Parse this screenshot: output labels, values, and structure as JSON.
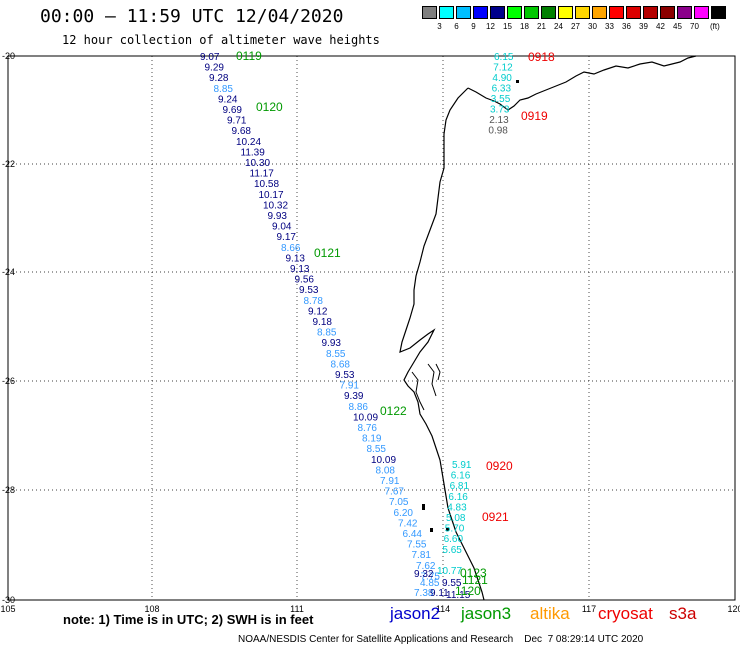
{
  "header": {
    "title": "00:00 – 11:59 UTC 12/04/2020",
    "subtitle": "12 hour collection of altimeter wave heights"
  },
  "colorbar": {
    "colors": [
      "#7f7f7f",
      "#00ffff",
      "#00bfff",
      "#0000ff",
      "#00008b",
      "#00ff00",
      "#00c800",
      "#008000",
      "#ffff00",
      "#ffd700",
      "#ffa500",
      "#ff0000",
      "#dc0000",
      "#b40000",
      "#8b0000",
      "#8b008b",
      "#ff00ff",
      "#000000"
    ],
    "labels": [
      "3",
      "6",
      "9",
      "12",
      "15",
      "18",
      "21",
      "24",
      "27",
      "30",
      "33",
      "36",
      "39",
      "42",
      "45",
      "70"
    ],
    "unit": "(ft)"
  },
  "axes": {
    "lon_ticks": [
      "105",
      "108",
      "111",
      "114",
      "117",
      "120"
    ],
    "lat_ticks": [
      "-20",
      "-22",
      "-24",
      "-26",
      "-28",
      "-30"
    ]
  },
  "colors": {
    "jason2": "#0000cc",
    "jason3": "#009900",
    "altika": "#ff9900",
    "cryosat": "#ee0000",
    "s3a": "#cc0000",
    "light": "#00cccc",
    "mid": "#3399ff",
    "dark": "#000080",
    "gray": "#555555"
  },
  "main_track": {
    "values": [
      {
        "v": "9.07",
        "c": "dark"
      },
      {
        "v": "9.29",
        "c": "dark"
      },
      {
        "v": "9.28",
        "c": "dark"
      },
      {
        "v": "8.85",
        "c": "mid"
      },
      {
        "v": "9.24",
        "c": "dark"
      },
      {
        "v": "9.69",
        "c": "dark"
      },
      {
        "v": "9.71",
        "c": "dark"
      },
      {
        "v": "9.68",
        "c": "dark"
      },
      {
        "v": "10.24",
        "c": "dark"
      },
      {
        "v": "11.39",
        "c": "dark"
      },
      {
        "v": "10.30",
        "c": "dark"
      },
      {
        "v": "11.17",
        "c": "dark"
      },
      {
        "v": "10.58",
        "c": "dark"
      },
      {
        "v": "10.17",
        "c": "dark"
      },
      {
        "v": "10.32",
        "c": "dark"
      },
      {
        "v": "9.93",
        "c": "dark"
      },
      {
        "v": "9.04",
        "c": "dark"
      },
      {
        "v": "9.17",
        "c": "dark"
      },
      {
        "v": "8.66",
        "c": "mid"
      },
      {
        "v": "9.13",
        "c": "dark"
      },
      {
        "v": "9.13",
        "c": "dark"
      },
      {
        "v": "9.56",
        "c": "dark"
      },
      {
        "v": "9.53",
        "c": "dark"
      },
      {
        "v": "8.78",
        "c": "mid"
      },
      {
        "v": "9.12",
        "c": "dark"
      },
      {
        "v": "9.18",
        "c": "dark"
      },
      {
        "v": "8.85",
        "c": "mid"
      },
      {
        "v": "9.93",
        "c": "dark"
      },
      {
        "v": "8.55",
        "c": "mid"
      },
      {
        "v": "8.68",
        "c": "mid"
      },
      {
        "v": "9.53",
        "c": "dark"
      },
      {
        "v": "7.91",
        "c": "mid"
      },
      {
        "v": "9.39",
        "c": "dark"
      },
      {
        "v": "8.86",
        "c": "mid"
      },
      {
        "v": "10.09",
        "c": "dark"
      },
      {
        "v": "8.76",
        "c": "mid"
      },
      {
        "v": "8.19",
        "c": "mid"
      },
      {
        "v": "8.55",
        "c": "mid"
      },
      {
        "v": "10.09",
        "c": "dark"
      },
      {
        "v": "8.08",
        "c": "mid"
      },
      {
        "v": "7.91",
        "c": "mid"
      },
      {
        "v": "7.67",
        "c": "mid"
      },
      {
        "v": "7.05",
        "c": "mid"
      },
      {
        "v": "6.20",
        "c": "mid"
      },
      {
        "v": "7.42",
        "c": "mid"
      },
      {
        "v": "6.44",
        "c": "mid"
      },
      {
        "v": "7.55",
        "c": "mid"
      },
      {
        "v": "7.81",
        "c": "mid"
      },
      {
        "v": "7.62",
        "c": "mid"
      },
      {
        "v": "7.75",
        "c": "mid"
      }
    ],
    "time_labels": [
      "0119",
      "0120",
      "0121",
      "0122"
    ]
  },
  "right_track_top": {
    "values": [
      {
        "v": "6.15",
        "c": "light"
      },
      {
        "v": "7.12",
        "c": "light"
      },
      {
        "v": "4.90",
        "c": "light"
      },
      {
        "v": "6.33",
        "c": "light"
      },
      {
        "v": "3.55",
        "c": "light"
      },
      {
        "v": "3.73",
        "c": "light"
      },
      {
        "v": "2.13",
        "c": "gray"
      },
      {
        "v": "0.98",
        "c": "gray"
      }
    ],
    "time_labels": [
      "0918",
      "0919"
    ]
  },
  "right_track_bottom": {
    "values": [
      {
        "v": "5.91",
        "c": "light"
      },
      {
        "v": "6.16",
        "c": "light"
      },
      {
        "v": "6.81",
        "c": "light"
      },
      {
        "v": "6.16",
        "c": "light"
      },
      {
        "v": "4.83",
        "c": "light"
      },
      {
        "v": "5.08",
        "c": "light"
      },
      {
        "v": "5.70",
        "c": "light"
      },
      {
        "v": "6.60",
        "c": "light"
      },
      {
        "v": "5.65",
        "c": "light"
      }
    ],
    "time_labels": [
      "0920",
      "0921"
    ]
  },
  "bottom_cluster": {
    "values": [
      "9.32",
      "10.77",
      "4.85",
      "9.55",
      "7.38",
      "9.11",
      "11.15"
    ],
    "time_labels": [
      "0123",
      "1121",
      "1120"
    ]
  },
  "footer": {
    "note": "note: 1) Time is in UTC; 2) SWH is in feet",
    "legend": [
      "jason2",
      "jason3",
      "altika",
      "cryosat",
      "s3a"
    ],
    "credit": "NOAA/NESDIS Center for Satellite Applications and Research    Dec  7 08:29:14 UTC 2020"
  }
}
